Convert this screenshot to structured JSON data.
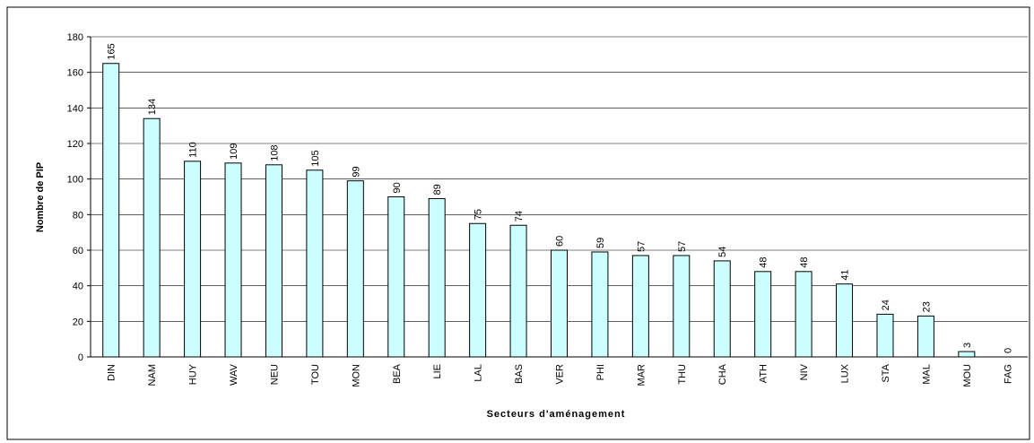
{
  "chart_data": {
    "type": "bar",
    "y_label": "Nombre de PIP",
    "x_label": "Secteurs d'aménagement",
    "categories": [
      "DIN",
      "NAM",
      "HUY",
      "WAV",
      "NEU",
      "TOU",
      "MON",
      "BEA",
      "LIE",
      "LAL",
      "BAS",
      "VER",
      "PHI",
      "MAR",
      "THU",
      "CHA",
      "ATH",
      "NIV",
      "LUX",
      "STA",
      "MAL",
      "MOU",
      "FAG"
    ],
    "values": [
      165,
      134,
      110,
      109,
      108,
      105,
      99,
      90,
      89,
      75,
      74,
      60,
      59,
      57,
      57,
      54,
      48,
      48,
      41,
      24,
      23,
      3,
      0
    ],
    "color": "#ccffff",
    "ylim": [
      0,
      180
    ],
    "yticks": [
      0,
      20,
      40,
      60,
      80,
      100,
      120,
      140,
      160,
      180
    ],
    "grid": true
  }
}
